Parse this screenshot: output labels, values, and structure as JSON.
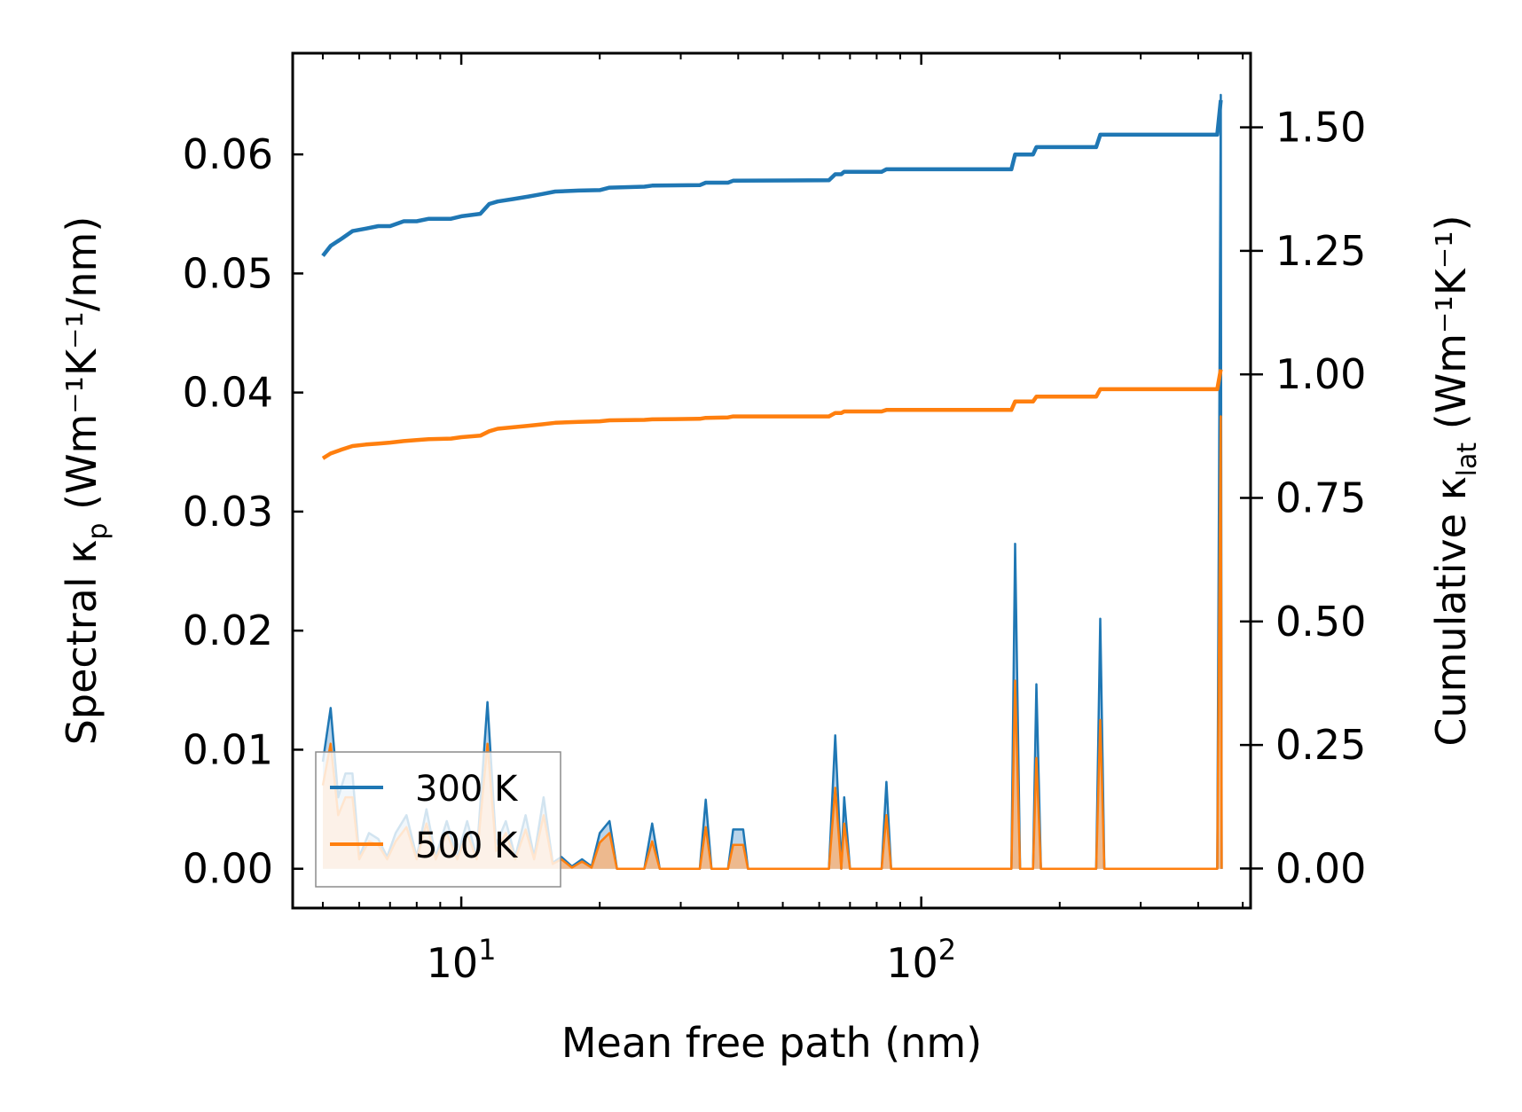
{
  "chart_data": {
    "type": "line",
    "xscale": "log",
    "xlabel": "Mean free path (nm)",
    "ylabel_left": {
      "main": "Spectral κ",
      "sub": "p",
      "units": " (Wm⁻¹K⁻¹/nm)"
    },
    "ylabel_right": {
      "main": "Cumulative κ",
      "sub": "lat",
      "units": " (Wm⁻¹K⁻¹)"
    },
    "xlim": [
      4.3,
      520
    ],
    "ylim_left": [
      -0.0033,
      0.0685
    ],
    "ylim_right": [
      -0.08,
      1.65
    ],
    "x_major_ticks": [
      {
        "value": 10,
        "base": "10",
        "exp": "1"
      },
      {
        "value": 100,
        "base": "10",
        "exp": "2"
      }
    ],
    "y_left_ticks": [
      "0.00",
      "0.01",
      "0.02",
      "0.03",
      "0.04",
      "0.05",
      "0.06"
    ],
    "y_right_ticks": [
      "0.00",
      "0.25",
      "0.50",
      "0.75",
      "1.00",
      "1.25",
      "1.50"
    ],
    "legend": {
      "position": "lower-left",
      "entries": [
        "300 K",
        "500 K"
      ]
    },
    "colors": {
      "s300": "#1f77b4",
      "s500": "#ff7f0e",
      "s300_fill": "#aecde6",
      "s500_fill": "#f6b47e"
    },
    "spectral": [
      {
        "name": "300 K",
        "points": [
          [
            5.0,
            0.009
          ],
          [
            5.2,
            0.0135
          ],
          [
            5.4,
            0.006
          ],
          [
            5.6,
            0.008
          ],
          [
            5.8,
            0.008
          ],
          [
            6.0,
            0.001
          ],
          [
            6.3,
            0.003
          ],
          [
            6.6,
            0.0025
          ],
          [
            6.9,
            0.001
          ],
          [
            7.2,
            0.003
          ],
          [
            7.6,
            0.0045
          ],
          [
            8.0,
            0.001
          ],
          [
            8.4,
            0.005
          ],
          [
            8.8,
            0.001
          ],
          [
            9.3,
            0.004
          ],
          [
            9.8,
            0.001
          ],
          [
            10.3,
            0.004
          ],
          [
            10.8,
            0.001
          ],
          [
            11.4,
            0.014
          ],
          [
            11.9,
            0.002
          ],
          [
            12.5,
            0.004
          ],
          [
            13.1,
            0.001
          ],
          [
            13.8,
            0.0045
          ],
          [
            14.4,
            0.001
          ],
          [
            15.1,
            0.006
          ],
          [
            15.8,
            0.0005
          ],
          [
            16.5,
            0.001
          ],
          [
            17.4,
            0.0002
          ],
          [
            18.3,
            0.0008
          ],
          [
            19.2,
            0.0002
          ],
          [
            20.0,
            0.003
          ],
          [
            21.0,
            0.004
          ],
          [
            21.8,
            0.0
          ],
          [
            25.0,
            0.0
          ],
          [
            26.0,
            0.0038
          ],
          [
            27.0,
            0.0
          ],
          [
            33.0,
            0.0
          ],
          [
            34.0,
            0.0058
          ],
          [
            35.0,
            0.0
          ],
          [
            38.0,
            0.0
          ],
          [
            39.0,
            0.0033
          ],
          [
            41.0,
            0.0033
          ],
          [
            42.0,
            0.0
          ],
          [
            63.0,
            0.0
          ],
          [
            65.0,
            0.0112
          ],
          [
            67.0,
            0.0
          ],
          [
            68.0,
            0.006
          ],
          [
            70.0,
            0.0
          ],
          [
            82.0,
            0.0
          ],
          [
            84.0,
            0.0073
          ],
          [
            86.0,
            0.0
          ],
          [
            157.0,
            0.0
          ],
          [
            160.0,
            0.0273
          ],
          [
            164.0,
            0.0
          ],
          [
            175.0,
            0.0
          ],
          [
            178.0,
            0.0155
          ],
          [
            182.0,
            0.0
          ],
          [
            240.0,
            0.0
          ],
          [
            245.0,
            0.021
          ],
          [
            250.0,
            0.0
          ],
          [
            440.0,
            0.0
          ],
          [
            448.0,
            0.065
          ],
          [
            450.0,
            0.0
          ]
        ]
      },
      {
        "name": "500 K",
        "points": [
          [
            5.0,
            0.007
          ],
          [
            5.2,
            0.0105
          ],
          [
            5.4,
            0.0045
          ],
          [
            5.6,
            0.006
          ],
          [
            5.8,
            0.006
          ],
          [
            6.0,
            0.0008
          ],
          [
            6.3,
            0.0023
          ],
          [
            6.6,
            0.002
          ],
          [
            6.9,
            0.0008
          ],
          [
            7.2,
            0.0023
          ],
          [
            7.6,
            0.0035
          ],
          [
            8.0,
            0.0008
          ],
          [
            8.4,
            0.0038
          ],
          [
            8.8,
            0.0008
          ],
          [
            9.3,
            0.003
          ],
          [
            9.8,
            0.0008
          ],
          [
            10.3,
            0.003
          ],
          [
            10.8,
            0.0008
          ],
          [
            11.4,
            0.0105
          ],
          [
            11.9,
            0.0015
          ],
          [
            12.5,
            0.003
          ],
          [
            13.1,
            0.0008
          ],
          [
            13.8,
            0.0033
          ],
          [
            14.4,
            0.0008
          ],
          [
            15.1,
            0.0045
          ],
          [
            15.8,
            0.0004
          ],
          [
            16.5,
            0.0008
          ],
          [
            17.4,
            0.0001
          ],
          [
            18.3,
            0.0006
          ],
          [
            19.2,
            0.0001
          ],
          [
            20.0,
            0.0022
          ],
          [
            21.0,
            0.003
          ],
          [
            21.8,
            0.0
          ],
          [
            25.0,
            0.0
          ],
          [
            26.0,
            0.0023
          ],
          [
            27.0,
            0.0
          ],
          [
            33.0,
            0.0
          ],
          [
            34.0,
            0.0035
          ],
          [
            35.0,
            0.0
          ],
          [
            38.0,
            0.0
          ],
          [
            39.0,
            0.002
          ],
          [
            41.0,
            0.002
          ],
          [
            42.0,
            0.0
          ],
          [
            63.0,
            0.0
          ],
          [
            65.0,
            0.0068
          ],
          [
            67.0,
            0.0
          ],
          [
            68.0,
            0.0038
          ],
          [
            70.0,
            0.0
          ],
          [
            82.0,
            0.0
          ],
          [
            84.0,
            0.0045
          ],
          [
            86.0,
            0.0
          ],
          [
            157.0,
            0.0
          ],
          [
            160.0,
            0.0158
          ],
          [
            164.0,
            0.0
          ],
          [
            175.0,
            0.0
          ],
          [
            178.0,
            0.0093
          ],
          [
            182.0,
            0.0
          ],
          [
            240.0,
            0.0
          ],
          [
            245.0,
            0.0125
          ],
          [
            250.0,
            0.0
          ],
          [
            440.0,
            0.0
          ],
          [
            448.0,
            0.038
          ],
          [
            450.0,
            0.0
          ]
        ]
      }
    ],
    "cumulative": [
      {
        "name": "300 K",
        "points": [
          [
            5.0,
            1.24
          ],
          [
            5.2,
            1.26
          ],
          [
            5.5,
            1.275
          ],
          [
            5.8,
            1.29
          ],
          [
            6.2,
            1.295
          ],
          [
            6.6,
            1.3
          ],
          [
            7.0,
            1.3
          ],
          [
            7.5,
            1.31
          ],
          [
            8.0,
            1.31
          ],
          [
            8.5,
            1.315
          ],
          [
            9.5,
            1.315
          ],
          [
            10.0,
            1.32
          ],
          [
            11.0,
            1.325
          ],
          [
            11.5,
            1.345
          ],
          [
            12.0,
            1.35
          ],
          [
            13.0,
            1.355
          ],
          [
            14.0,
            1.36
          ],
          [
            15.0,
            1.365
          ],
          [
            16.0,
            1.37
          ],
          [
            18.0,
            1.372
          ],
          [
            20.0,
            1.373
          ],
          [
            21.0,
            1.378
          ],
          [
            25.0,
            1.38
          ],
          [
            26.0,
            1.382
          ],
          [
            33.0,
            1.383
          ],
          [
            34.0,
            1.388
          ],
          [
            38.0,
            1.388
          ],
          [
            39.0,
            1.392
          ],
          [
            63.0,
            1.393
          ],
          [
            65.0,
            1.405
          ],
          [
            67.0,
            1.405
          ],
          [
            68.0,
            1.41
          ],
          [
            82.0,
            1.41
          ],
          [
            84.0,
            1.415
          ],
          [
            157.0,
            1.415
          ],
          [
            160.0,
            1.445
          ],
          [
            175.0,
            1.445
          ],
          [
            178.0,
            1.46
          ],
          [
            240.0,
            1.46
          ],
          [
            245.0,
            1.485
          ],
          [
            440.0,
            1.485
          ],
          [
            448.0,
            1.555
          ]
        ]
      },
      {
        "name": "500 K",
        "points": [
          [
            5.0,
            0.83
          ],
          [
            5.2,
            0.84
          ],
          [
            5.5,
            0.848
          ],
          [
            5.8,
            0.855
          ],
          [
            6.2,
            0.858
          ],
          [
            6.6,
            0.86
          ],
          [
            7.0,
            0.862
          ],
          [
            7.5,
            0.865
          ],
          [
            8.0,
            0.867
          ],
          [
            8.5,
            0.869
          ],
          [
            9.5,
            0.87
          ],
          [
            10.0,
            0.873
          ],
          [
            11.0,
            0.876
          ],
          [
            11.5,
            0.885
          ],
          [
            12.0,
            0.89
          ],
          [
            13.0,
            0.893
          ],
          [
            14.0,
            0.896
          ],
          [
            15.0,
            0.899
          ],
          [
            16.0,
            0.902
          ],
          [
            18.0,
            0.904
          ],
          [
            20.0,
            0.905
          ],
          [
            21.0,
            0.907
          ],
          [
            25.0,
            0.908
          ],
          [
            26.0,
            0.909
          ],
          [
            33.0,
            0.91
          ],
          [
            34.0,
            0.912
          ],
          [
            38.0,
            0.913
          ],
          [
            39.0,
            0.915
          ],
          [
            63.0,
            0.915
          ],
          [
            65.0,
            0.922
          ],
          [
            67.0,
            0.922
          ],
          [
            68.0,
            0.925
          ],
          [
            82.0,
            0.925
          ],
          [
            84.0,
            0.928
          ],
          [
            157.0,
            0.928
          ],
          [
            160.0,
            0.945
          ],
          [
            175.0,
            0.945
          ],
          [
            178.0,
            0.955
          ],
          [
            240.0,
            0.955
          ],
          [
            245.0,
            0.97
          ],
          [
            440.0,
            0.97
          ],
          [
            448.0,
            1.01
          ]
        ]
      }
    ]
  }
}
